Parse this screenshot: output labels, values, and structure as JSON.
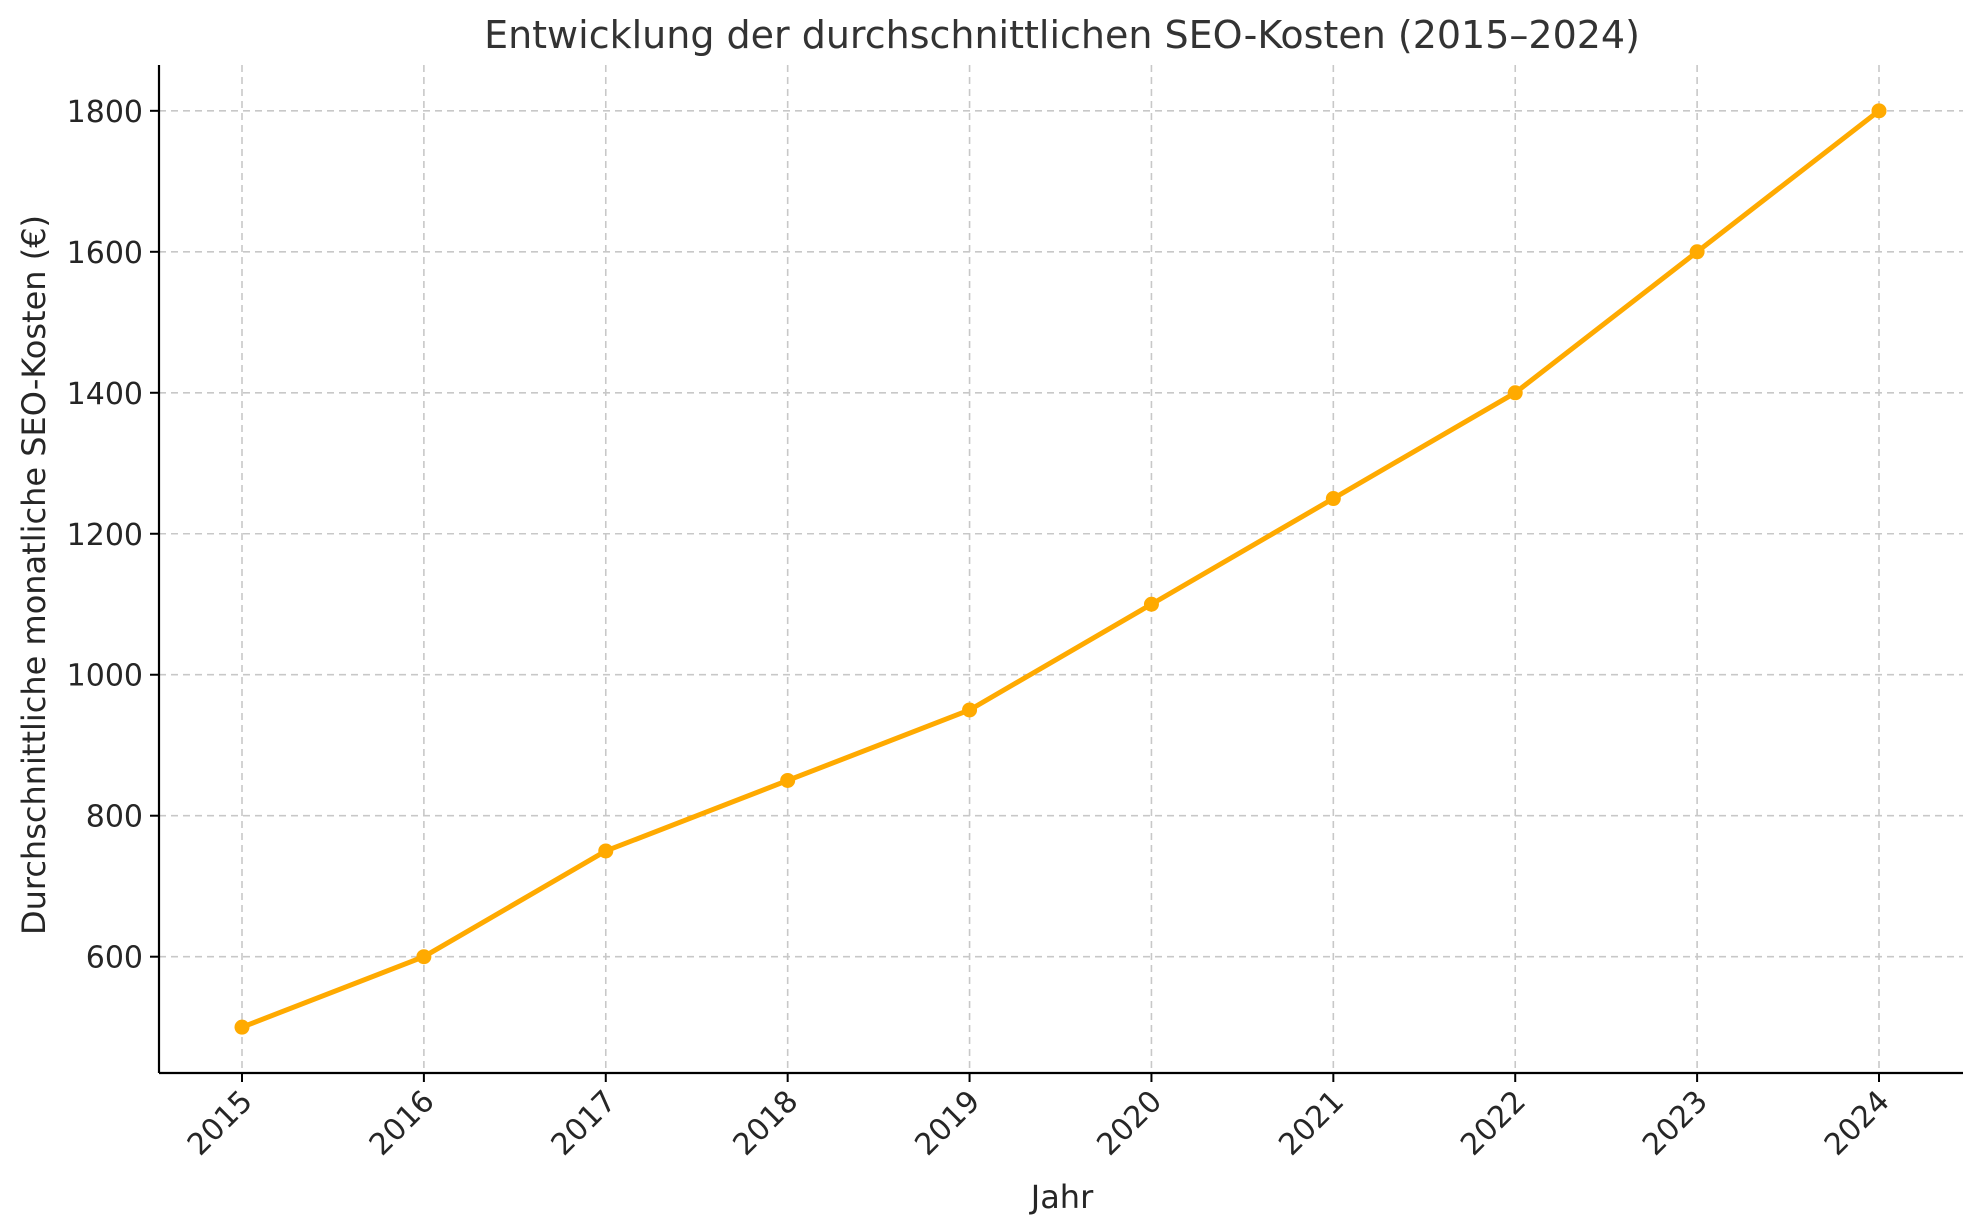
{
  "chart_data": {
    "type": "line",
    "title": "Entwicklung der durchschnittlichen SEO-Kosten (2015–2024)",
    "xlabel": "Jahr",
    "ylabel": "Durchschnittliche monatliche SEO-Kosten (€)",
    "categories": [
      "2015",
      "2016",
      "2017",
      "2018",
      "2019",
      "2020",
      "2021",
      "2022",
      "2023",
      "2024"
    ],
    "series": [
      {
        "name": "SEO-Kosten",
        "values": [
          500,
          600,
          750,
          850,
          950,
          1100,
          1250,
          1400,
          1600,
          1800
        ]
      }
    ],
    "yticks": [
      600,
      800,
      1000,
      1200,
      1400,
      1600,
      1800
    ],
    "ylim": [
      435,
      1865
    ],
    "grid": true,
    "line_color": "#FFAA00",
    "axis_color": "#000000",
    "grid_color": "#c8c8c8"
  }
}
